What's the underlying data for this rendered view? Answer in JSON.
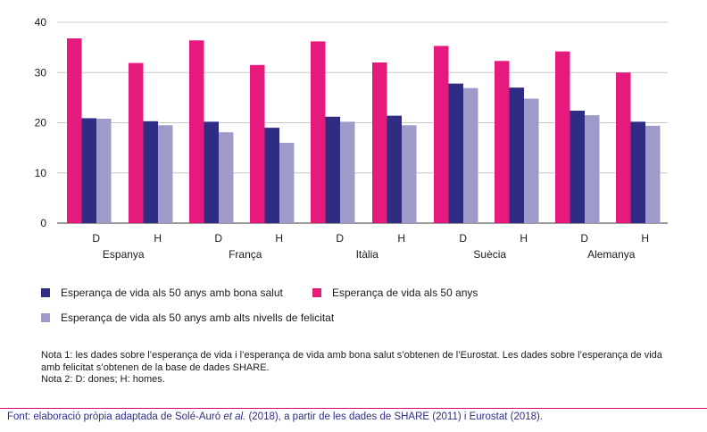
{
  "chart_data": {
    "type": "bar",
    "ylim": [
      0,
      40
    ],
    "yticks": [
      "0",
      "10",
      "20",
      "30",
      "40"
    ],
    "groups": [
      {
        "country": "Espanya",
        "sexes": [
          "D",
          "H"
        ]
      },
      {
        "country": "França",
        "sexes": [
          "D",
          "H"
        ]
      },
      {
        "country": "Itàlia",
        "sexes": [
          "D",
          "H"
        ]
      },
      {
        "country": "Suècia",
        "sexes": [
          "D",
          "H"
        ]
      },
      {
        "country": "Alemanya",
        "sexes": [
          "D",
          "H"
        ]
      }
    ],
    "series": [
      {
        "name": "Esperança de vida als 50 anys",
        "color": "#e6197d",
        "values": [
          36.8,
          31.9,
          36.4,
          31.5,
          36.2,
          32.0,
          35.3,
          32.3,
          34.2,
          30.0
        ]
      },
      {
        "name": "Esperança de vida als 50 anys amb bona salut",
        "color": "#2e2d83",
        "values": [
          20.9,
          20.3,
          20.2,
          19.0,
          21.2,
          21.4,
          27.8,
          27.0,
          22.4,
          20.2
        ]
      },
      {
        "name": "Esperança de vida als 50 anys amb alts nivells de felicitat",
        "color": "#9f9bc8",
        "values": [
          20.8,
          19.5,
          18.1,
          16.0,
          20.2,
          19.5,
          26.9,
          24.8,
          21.5,
          19.4
        ]
      }
    ],
    "grid": true,
    "legend_position": "bottom"
  },
  "legend": {
    "items": [
      {
        "label": "Esperança de vida als 50 anys amb bona salut",
        "color": "#2e2d83"
      },
      {
        "label": "Esperança de vida als 50 anys",
        "color": "#e6197d"
      },
      {
        "label": "Esperança de vida als 50 anys amb alts nivells de felicitat",
        "color": "#9f9bc8"
      }
    ]
  },
  "notes": {
    "note1": "Nota 1: les dades sobre l’esperança de vida i l’esperança de vida amb bona salut s’obtenen de l’Eurostat. Les dades sobre l’esperança de vida amb felicitat s’obtenen de la base de dades SHARE.",
    "note2": "Nota 2: D: dones; H: homes."
  },
  "source": {
    "prefix": "Font: elaboració pròpia adaptada de Solé-Auró ",
    "etal": "et al.",
    "suffix": " (2018), a partir de les dades de SHARE (2011) i Eurostat (2018)."
  }
}
